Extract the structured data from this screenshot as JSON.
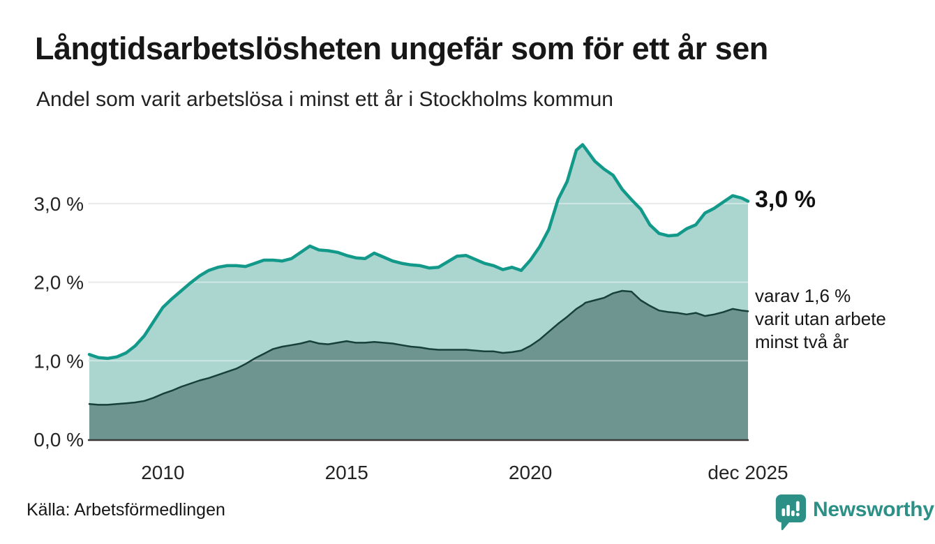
{
  "header": {
    "title": "Långtidsarbetslösheten ungefär som för ett år sen",
    "subtitle": "Andel som varit arbetslösa i minst ett år i Stockholms kommun"
  },
  "annotations": {
    "latest_total": "3,0 %",
    "secondary_line1": "varav 1,6 %",
    "secondary_line2": "varit utan arbete",
    "secondary_line3": "minst två år"
  },
  "footer": {
    "source": "Källa: Arbetsförmedlingen",
    "brand": "Newsworthy"
  },
  "colors": {
    "accent_teal_line": "#12998a",
    "fill_light_teal": "#abd6d0",
    "fill_dark_teal": "#6e958f",
    "dark_boundary_line": "#17403b",
    "gridline": "#dcdcdc",
    "axis_line": "#3a3a3a",
    "brand_teal": "#2d9087",
    "text": "#1a1a1a"
  },
  "chart_data": {
    "type": "area",
    "title": "Långtidsarbetslösheten ungefär som för ett år sen",
    "subtitle": "Andel som varit arbetslösa i minst ett år i Stockholms kommun",
    "unit": "%",
    "grid": "horizontal",
    "legend_position": "right-edge-annotations",
    "x_range": [
      2008.0,
      2025.92
    ],
    "y_range": [
      0.0,
      3.75
    ],
    "x_axis_ticks": [
      {
        "v": 2010,
        "label": "2010"
      },
      {
        "v": 2015,
        "label": "2015"
      },
      {
        "v": 2020,
        "label": "2020"
      },
      {
        "v": 2025.92,
        "label": "dec 2025"
      }
    ],
    "y_axis_ticks": [
      {
        "v": 0,
        "label": "0,0 %"
      },
      {
        "v": 1,
        "label": "1,0 %"
      },
      {
        "v": 2,
        "label": "2,0 %"
      },
      {
        "v": 3,
        "label": "3,0 %"
      }
    ],
    "x": [
      2008.0,
      2008.25,
      2008.5,
      2008.75,
      2009.0,
      2009.25,
      2009.5,
      2009.75,
      2010.0,
      2010.25,
      2010.5,
      2010.75,
      2011.0,
      2011.25,
      2011.5,
      2011.75,
      2012.0,
      2012.25,
      2012.5,
      2012.75,
      2013.0,
      2013.25,
      2013.5,
      2013.75,
      2014.0,
      2014.25,
      2014.5,
      2014.75,
      2015.0,
      2015.25,
      2015.5,
      2015.75,
      2016.0,
      2016.25,
      2016.5,
      2016.75,
      2017.0,
      2017.25,
      2017.5,
      2017.75,
      2018.0,
      2018.25,
      2018.5,
      2018.75,
      2019.0,
      2019.25,
      2019.5,
      2019.75,
      2020.0,
      2020.25,
      2020.5,
      2020.75,
      2021.0,
      2021.25,
      2021.42,
      2021.5,
      2021.75,
      2022.0,
      2022.25,
      2022.5,
      2022.75,
      2023.0,
      2023.25,
      2023.5,
      2023.75,
      2024.0,
      2024.25,
      2024.5,
      2024.75,
      2025.0,
      2025.25,
      2025.5,
      2025.75,
      2025.92
    ],
    "series": [
      {
        "name": "Andel arbetslösa minst ett år",
        "color": "#12998a",
        "fill": "#abd6d0",
        "stroke_width": 4.5,
        "end_label": "3,0 %",
        "values": [
          1.08,
          1.04,
          1.03,
          1.05,
          1.1,
          1.19,
          1.32,
          1.5,
          1.68,
          1.79,
          1.89,
          1.99,
          2.08,
          2.15,
          2.19,
          2.21,
          2.21,
          2.2,
          2.24,
          2.28,
          2.28,
          2.27,
          2.3,
          2.38,
          2.46,
          2.41,
          2.4,
          2.38,
          2.34,
          2.31,
          2.3,
          2.37,
          2.32,
          2.27,
          2.24,
          2.22,
          2.21,
          2.18,
          2.19,
          2.26,
          2.33,
          2.34,
          2.29,
          2.24,
          2.21,
          2.16,
          2.19,
          2.15,
          2.28,
          2.45,
          2.67,
          3.05,
          3.28,
          3.68,
          3.75,
          3.7,
          3.54,
          3.44,
          3.36,
          3.18,
          3.05,
          2.93,
          2.73,
          2.62,
          2.59,
          2.6,
          2.68,
          2.73,
          2.88,
          2.94,
          3.02,
          3.1,
          3.07,
          3.03
        ]
      },
      {
        "name": "varav utan arbete minst två år",
        "color": "#17403b",
        "fill": "#6e958f",
        "stroke_width": 2.5,
        "end_label": "varav 1,6 % varit utan arbete minst två år",
        "values": [
          0.45,
          0.44,
          0.44,
          0.45,
          0.46,
          0.47,
          0.49,
          0.53,
          0.58,
          0.62,
          0.67,
          0.71,
          0.75,
          0.78,
          0.82,
          0.86,
          0.9,
          0.96,
          1.03,
          1.09,
          1.15,
          1.18,
          1.2,
          1.22,
          1.25,
          1.22,
          1.21,
          1.23,
          1.25,
          1.23,
          1.23,
          1.24,
          1.23,
          1.22,
          1.2,
          1.18,
          1.17,
          1.15,
          1.14,
          1.14,
          1.14,
          1.14,
          1.13,
          1.12,
          1.12,
          1.1,
          1.11,
          1.13,
          1.19,
          1.27,
          1.37,
          1.47,
          1.56,
          1.66,
          1.71,
          1.74,
          1.77,
          1.8,
          1.86,
          1.89,
          1.88,
          1.77,
          1.7,
          1.64,
          1.62,
          1.61,
          1.59,
          1.61,
          1.57,
          1.59,
          1.62,
          1.66,
          1.64,
          1.63
        ]
      }
    ]
  }
}
